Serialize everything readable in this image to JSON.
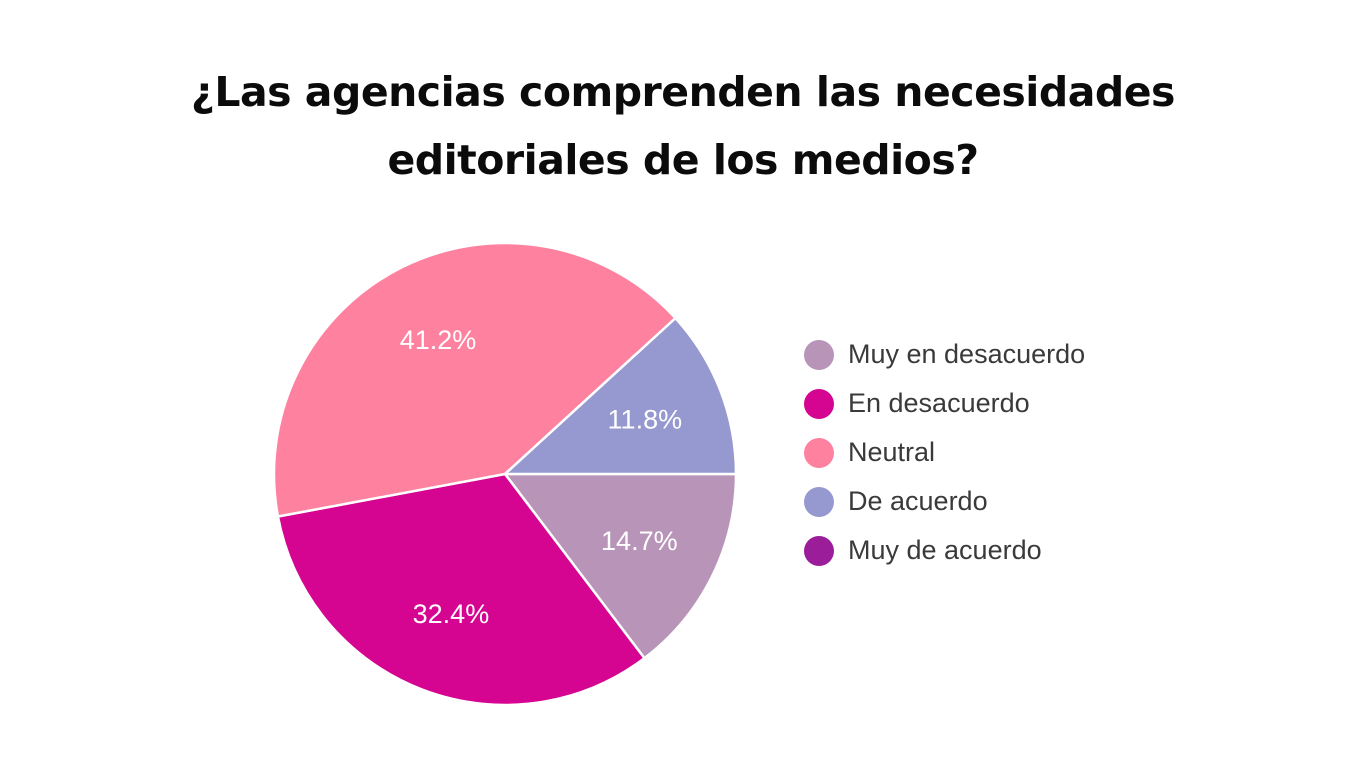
{
  "chart_data": {
    "type": "pie",
    "title_lines": [
      "¿Las agencias comprenden las necesidades",
      "editoriales de los medios?"
    ],
    "slices": [
      {
        "name": "Muy en desacuerdo",
        "value": 14.7,
        "label": "14.7%",
        "color": "#b895b8"
      },
      {
        "name": "En desacuerdo",
        "value": 32.4,
        "label": "32.4%",
        "color": "#d50591"
      },
      {
        "name": "Neutral",
        "value": 41.2,
        "label": "41.2%",
        "color": "#fe819f"
      },
      {
        "name": "De acuerdo",
        "value": 11.8,
        "label": "11.8%",
        "color": "#9699cf"
      },
      {
        "name": "Muy de acuerdo",
        "value": 0,
        "label": "",
        "color": "#9b1d99"
      }
    ],
    "slice_order": "clockwise from 3 o'clock",
    "legend_position": "right"
  }
}
